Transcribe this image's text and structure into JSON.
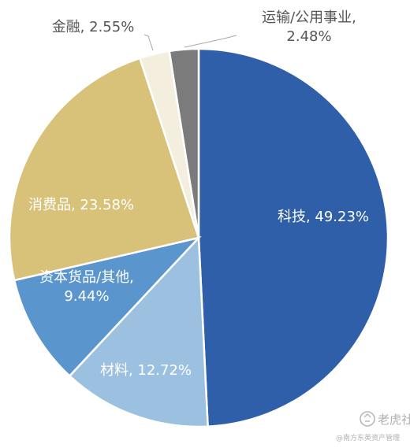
{
  "chart_data": {
    "type": "pie",
    "start": "12 o'clock",
    "direction": "clockwise",
    "slices": [
      {
        "label": "科技",
        "value": 49.23,
        "value_text": "49.23%",
        "color": "#2E5FA8",
        "label_color": "#ffffff",
        "label_lines": [
          "科技, 49.23%"
        ]
      },
      {
        "label": "材料",
        "value": 12.72,
        "value_text": "12.72%",
        "color": "#9CC0E0",
        "label_color": "#ffffff",
        "label_lines": [
          "材料, 12.72%"
        ]
      },
      {
        "label": "资本货品/其他",
        "value": 9.44,
        "value_text": "9.44%",
        "color": "#5B95CE",
        "label_color": "#ffffff",
        "label_lines": [
          "资本货品/其他,",
          "9.44%"
        ]
      },
      {
        "label": "消费品",
        "value": 23.58,
        "value_text": "23.58%",
        "color": "#D8C178",
        "label_color": "#ffffff",
        "label_lines": [
          "消费品, 23.58%"
        ]
      },
      {
        "label": "金融",
        "value": 2.55,
        "value_text": "2.55%",
        "color": "#F3EEDD",
        "label_color": "#555555",
        "label_lines": [
          "金融, 2.55%"
        ]
      },
      {
        "label": "运输/公用事业",
        "value": 2.48,
        "value_text": "2.48%",
        "color": "#7B7B7B",
        "label_color": "#555555",
        "label_lines": [
          "运输/公用事业,",
          "2.48%"
        ]
      }
    ]
  },
  "watermark": {
    "icon": "tiger-logo-icon",
    "title": "老虎社区",
    "subtitle": "@南方东英资产管理"
  }
}
